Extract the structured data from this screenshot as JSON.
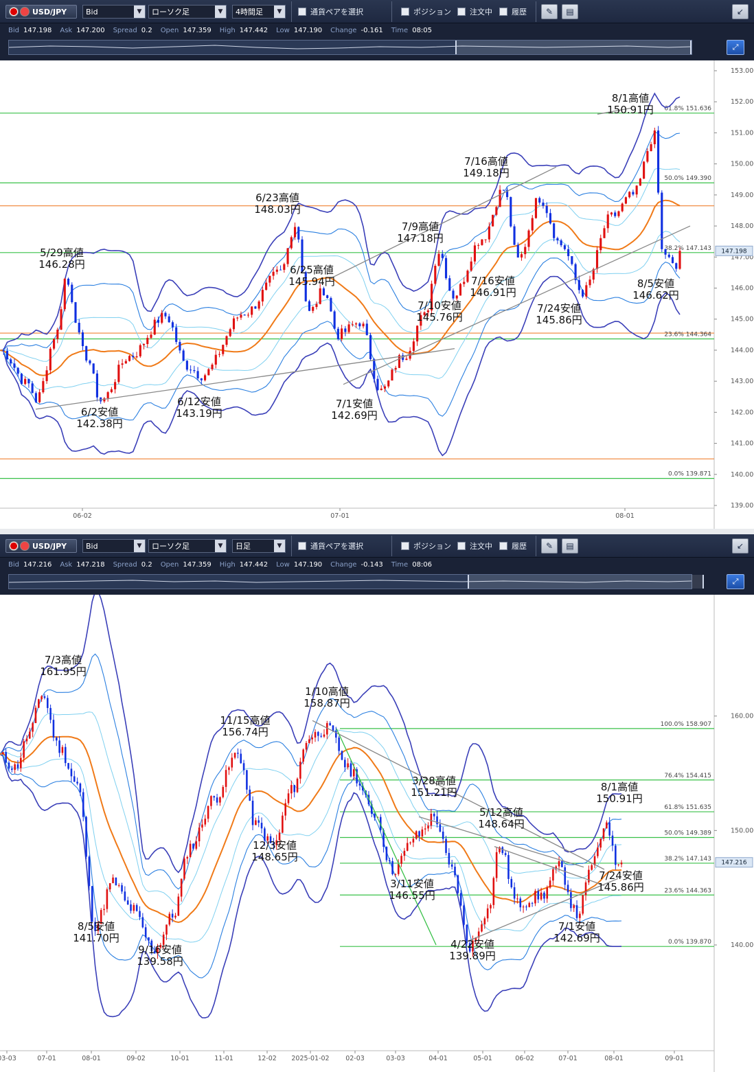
{
  "panels": [
    {
      "toolbar": {
        "pair": "USD/JPY",
        "price_type": "Bid",
        "chart_type": "ローソク足",
        "timeframe": "4時間足",
        "select_pair": "通貨ペアを選択",
        "position": "ポジション",
        "orders": "注文中",
        "history": "履歴"
      },
      "quote": {
        "bid_label": "Bid",
        "bid": "147.198",
        "ask_label": "Ask",
        "ask": "147.200",
        "spread_label": "Spread",
        "spread": "0.2",
        "open_label": "Open",
        "open": "147.359",
        "high_label": "High",
        "high": "147.442",
        "low_label": "Low",
        "low": "147.190",
        "change_label": "Change",
        "change": "-0.161",
        "time_label": "Time",
        "time": "08:05"
      },
      "current_price": "147.198"
    },
    {
      "toolbar": {
        "pair": "USD/JPY",
        "price_type": "Bid",
        "chart_type": "ローソク足",
        "timeframe": "日足",
        "select_pair": "通貨ペアを選択",
        "position": "ポジション",
        "orders": "注文中",
        "history": "履歴"
      },
      "quote": {
        "bid_label": "Bid",
        "bid": "147.216",
        "ask_label": "Ask",
        "ask": "147.218",
        "spread_label": "Spread",
        "spread": "0.2",
        "open_label": "Open",
        "open": "147.359",
        "high_label": "High",
        "high": "147.442",
        "low_label": "Low",
        "low": "147.190",
        "change_label": "Change",
        "change": "-0.143",
        "time_label": "Time",
        "time": "08:06"
      },
      "current_price": "147.216"
    }
  ],
  "colors": {
    "bull": "#e01010",
    "bear": "#1030e0",
    "ma": "#f07a18",
    "band_outer": "#3a3fb8",
    "band_mid": "#2a7fe0",
    "band_inner": "#7fd0f0",
    "fib": "#38c048",
    "hline_orange": "#f08030",
    "trend": "#888888"
  },
  "chart_data": [
    {
      "type": "candlestick",
      "title": "",
      "y_ticks": [
        "153.000",
        "152.000",
        "151.000",
        "150.000",
        "149.000",
        "148.000",
        "147.000",
        "146.000",
        "145.000",
        "144.000",
        "143.000",
        "142.000",
        "141.000",
        "140.000",
        "139.000"
      ],
      "ylim": [
        139,
        153
      ],
      "x_ticks": [
        "06-02",
        "07-01",
        "08-01"
      ],
      "fib_levels": [
        {
          "pct": "61.8%",
          "value": "151.636"
        },
        {
          "pct": "50.0%",
          "value": "149.390"
        },
        {
          "pct": "38.2%",
          "value": "147.143"
        },
        {
          "pct": "23.6%",
          "value": "144.364"
        },
        {
          "pct": "0.0%",
          "value": "139.871"
        }
      ],
      "orange_lines": [
        148.65,
        144.55,
        140.5
      ],
      "annotations": [
        {
          "date": "5/29高値",
          "price": "146.28円",
          "value": 146.28
        },
        {
          "date": "6/2安値",
          "price": "142.38円",
          "value": 142.38
        },
        {
          "date": "6/12安値",
          "price": "143.19円",
          "value": 143.19
        },
        {
          "date": "6/23高値",
          "price": "148.03円",
          "value": 148.03
        },
        {
          "date": "6/25高値",
          "price": "145.94円",
          "value": 145.94
        },
        {
          "date": "7/1安値",
          "price": "142.69円",
          "value": 142.69
        },
        {
          "date": "7/9高値",
          "price": "147.18円",
          "value": 147.18
        },
        {
          "date": "7/10安値",
          "price": "145.76円",
          "value": 145.76
        },
        {
          "date": "7/16高値",
          "price": "149.18円",
          "value": 149.18
        },
        {
          "date": "7/16安値",
          "price": "146.91円",
          "value": 146.91
        },
        {
          "date": "7/24安値",
          "price": "145.86円",
          "value": 145.86
        },
        {
          "date": "8/1高値",
          "price": "150.91円",
          "value": 150.91
        },
        {
          "date": "8/5安値",
          "price": "146.62円",
          "value": 146.62
        }
      ]
    },
    {
      "type": "candlestick",
      "title": "",
      "y_ticks": [
        "160.000",
        "150.000",
        "140.000"
      ],
      "ylim": [
        131,
        170
      ],
      "x_ticks": [
        "03-03",
        "07-01",
        "08-01",
        "09-02",
        "10-01",
        "11-01",
        "12-02",
        "2025-01-02",
        "02-03",
        "03-03",
        "04-01",
        "05-01",
        "06-02",
        "07-01",
        "08-01",
        "09-01"
      ],
      "fib_levels": [
        {
          "pct": "100.0%",
          "value": "158.907"
        },
        {
          "pct": "76.4%",
          "value": "154.415"
        },
        {
          "pct": "61.8%",
          "value": "151.635"
        },
        {
          "pct": "50.0%",
          "value": "149.389"
        },
        {
          "pct": "38.2%",
          "value": "147.143"
        },
        {
          "pct": "23.6%",
          "value": "144.363"
        },
        {
          "pct": "0.0%",
          "value": "139.870"
        }
      ],
      "annotations": [
        {
          "date": "7/3高値",
          "price": "161.95円",
          "value": 161.95
        },
        {
          "date": "8/5安値",
          "price": "141.70円",
          "value": 141.7
        },
        {
          "date": "9/16安値",
          "price": "139.58円",
          "value": 139.58
        },
        {
          "date": "11/15高値",
          "price": "156.74円",
          "value": 156.74
        },
        {
          "date": "12/3安値",
          "price": "148.65円",
          "value": 148.65
        },
        {
          "date": "1/10高値",
          "price": "158.87円",
          "value": 158.87
        },
        {
          "date": "3/11安値",
          "price": "146.55円",
          "value": 146.55
        },
        {
          "date": "3/28高値",
          "price": "151.21円",
          "value": 151.21
        },
        {
          "date": "4/22安値",
          "price": "139.89円",
          "value": 139.89
        },
        {
          "date": "5/12高値",
          "price": "148.64円",
          "value": 148.64
        },
        {
          "date": "7/1安値",
          "price": "142.69円",
          "value": 142.69
        },
        {
          "date": "7/24安値",
          "price": "145.86円",
          "value": 145.86
        },
        {
          "date": "8/1高値",
          "price": "150.91円",
          "value": 150.91
        }
      ]
    }
  ]
}
